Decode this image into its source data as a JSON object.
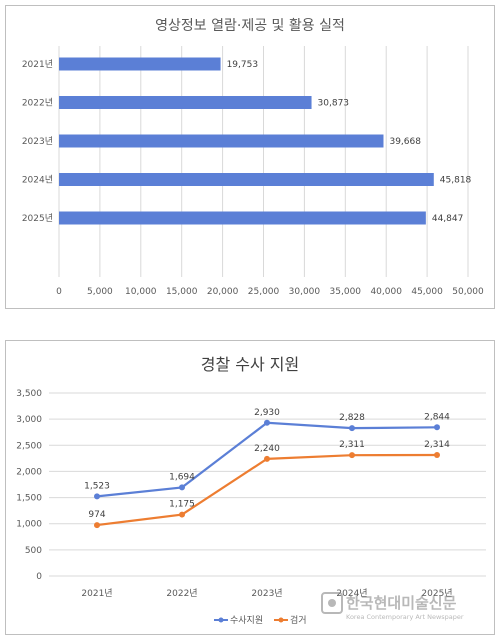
{
  "chart_data": [
    {
      "type": "bar",
      "orientation": "horizontal",
      "title": "영상정보 열람·제공 및 활용 실적",
      "categories": [
        "2021년",
        "2022년",
        "2023년",
        "2024년",
        "2025년"
      ],
      "values": [
        19753,
        30873,
        39668,
        45818,
        44847
      ],
      "value_labels": [
        "19,753",
        "30,873",
        "39,668",
        "45,818",
        "44,847"
      ],
      "xlim": [
        0,
        50000
      ],
      "x_ticks": [
        "0",
        "5,000",
        "10,000",
        "15,000",
        "20,000",
        "25,000",
        "30,000",
        "35,000",
        "40,000",
        "45,000",
        "50,000"
      ],
      "grid": true,
      "color": "#5b7fd6"
    },
    {
      "type": "line",
      "title": "경찰 수사 지원",
      "categories": [
        "2021년",
        "2022년",
        "2023년",
        "2024년",
        "2025년"
      ],
      "series": [
        {
          "name": "수사지원",
          "values": [
            1523,
            1694,
            2930,
            2828,
            2844
          ],
          "labels": [
            "1,523",
            "1,694",
            "2,930",
            "2,828",
            "2,844"
          ],
          "color": "#5b7fd6"
        },
        {
          "name": "검거",
          "values": [
            974,
            1175,
            2240,
            2311,
            2314
          ],
          "labels": [
            "974",
            "1,175",
            "2,240",
            "2,311",
            "2,314"
          ],
          "color": "#ed7d31"
        }
      ],
      "ylim": [
        0,
        3500
      ],
      "y_ticks": [
        "0",
        "500",
        "1,000",
        "1,500",
        "2,000",
        "2,500",
        "3,000",
        "3,500"
      ],
      "grid": true,
      "legend": "bottom"
    }
  ],
  "watermark": {
    "text": "한국현대미술신문",
    "subtext": "Korea Contemporary Art Newspaper"
  }
}
